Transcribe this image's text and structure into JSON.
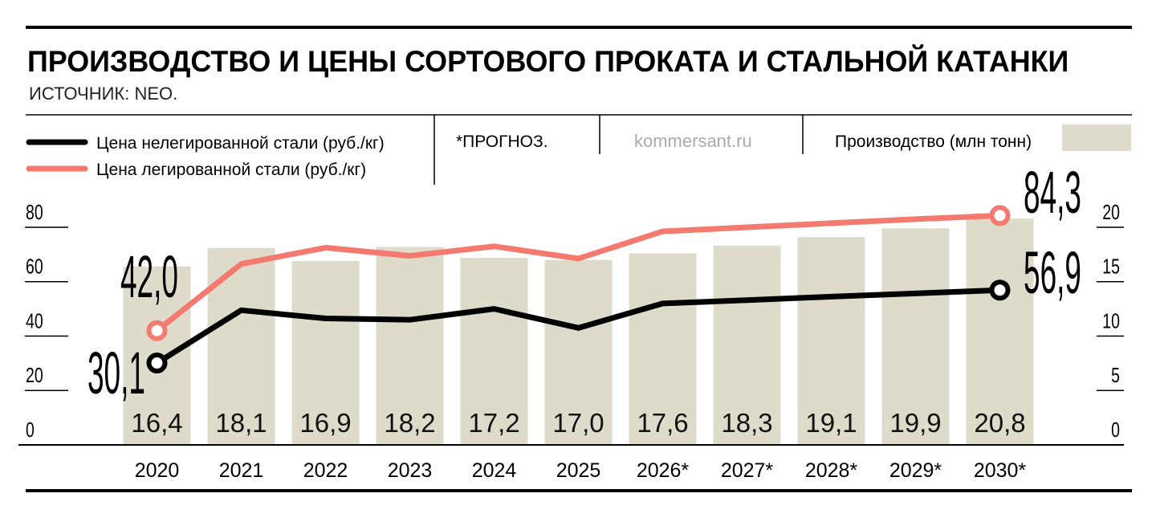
{
  "title": "ПРОИЗВОДСТВО И ЦЕНЫ СОРТОВОГО ПРОКАТА И СТАЛЬНОЙ КАТАНКИ",
  "source": "ИСТОЧНИК: NEO.",
  "legend": {
    "black_line": "Цена нелегированной стали (руб./кг)",
    "pink_line": "Цена легированной стали (руб./кг)",
    "forecast_note": "*ПРОГНОЗ.",
    "site": "kommersant.ru",
    "bars": "Производство (млн тонн)"
  },
  "colors": {
    "black_line": "#000000",
    "pink_line": "#f47a70",
    "bars": "#dedbcb"
  },
  "chart_data": {
    "type": "bar+line",
    "categories": [
      "2020",
      "2021",
      "2022",
      "2023",
      "2024",
      "2025",
      "2026*",
      "2027*",
      "2028*",
      "2029*",
      "2030*"
    ],
    "left_axis": {
      "ylim": [
        0,
        80
      ],
      "ticks": [
        "0",
        "20",
        "40",
        "60",
        "80"
      ]
    },
    "right_axis": {
      "ylim": [
        0,
        20
      ],
      "ticks": [
        "0",
        "5",
        "10",
        "15",
        "20"
      ]
    },
    "bars": {
      "name": "Производство (млн тонн)",
      "axis": "right",
      "values": [
        16.4,
        18.1,
        16.9,
        18.2,
        17.2,
        17.0,
        17.6,
        18.3,
        19.1,
        19.9,
        20.8
      ],
      "labels": [
        "16,4",
        "18,1",
        "16,9",
        "18,2",
        "17,2",
        "17,0",
        "17,6",
        "18,3",
        "19,1",
        "19,9",
        "20,8"
      ]
    },
    "series": [
      {
        "name": "Цена нелегированной стали (руб./кг)",
        "axis": "left",
        "values": [
          30.1,
          49.5,
          46.5,
          46,
          50,
          43,
          52,
          53.2,
          54.5,
          55.7,
          56.9
        ],
        "start_label": "30,1",
        "end_label": "56,9"
      },
      {
        "name": "Цена легированной стали (руб./кг)",
        "axis": "left",
        "values": [
          42.0,
          66.5,
          72.5,
          69.5,
          73,
          68.5,
          78.5,
          80,
          81.5,
          83,
          84.3
        ],
        "start_label": "42,0",
        "end_label": "84,3"
      }
    ],
    "grid": false
  }
}
